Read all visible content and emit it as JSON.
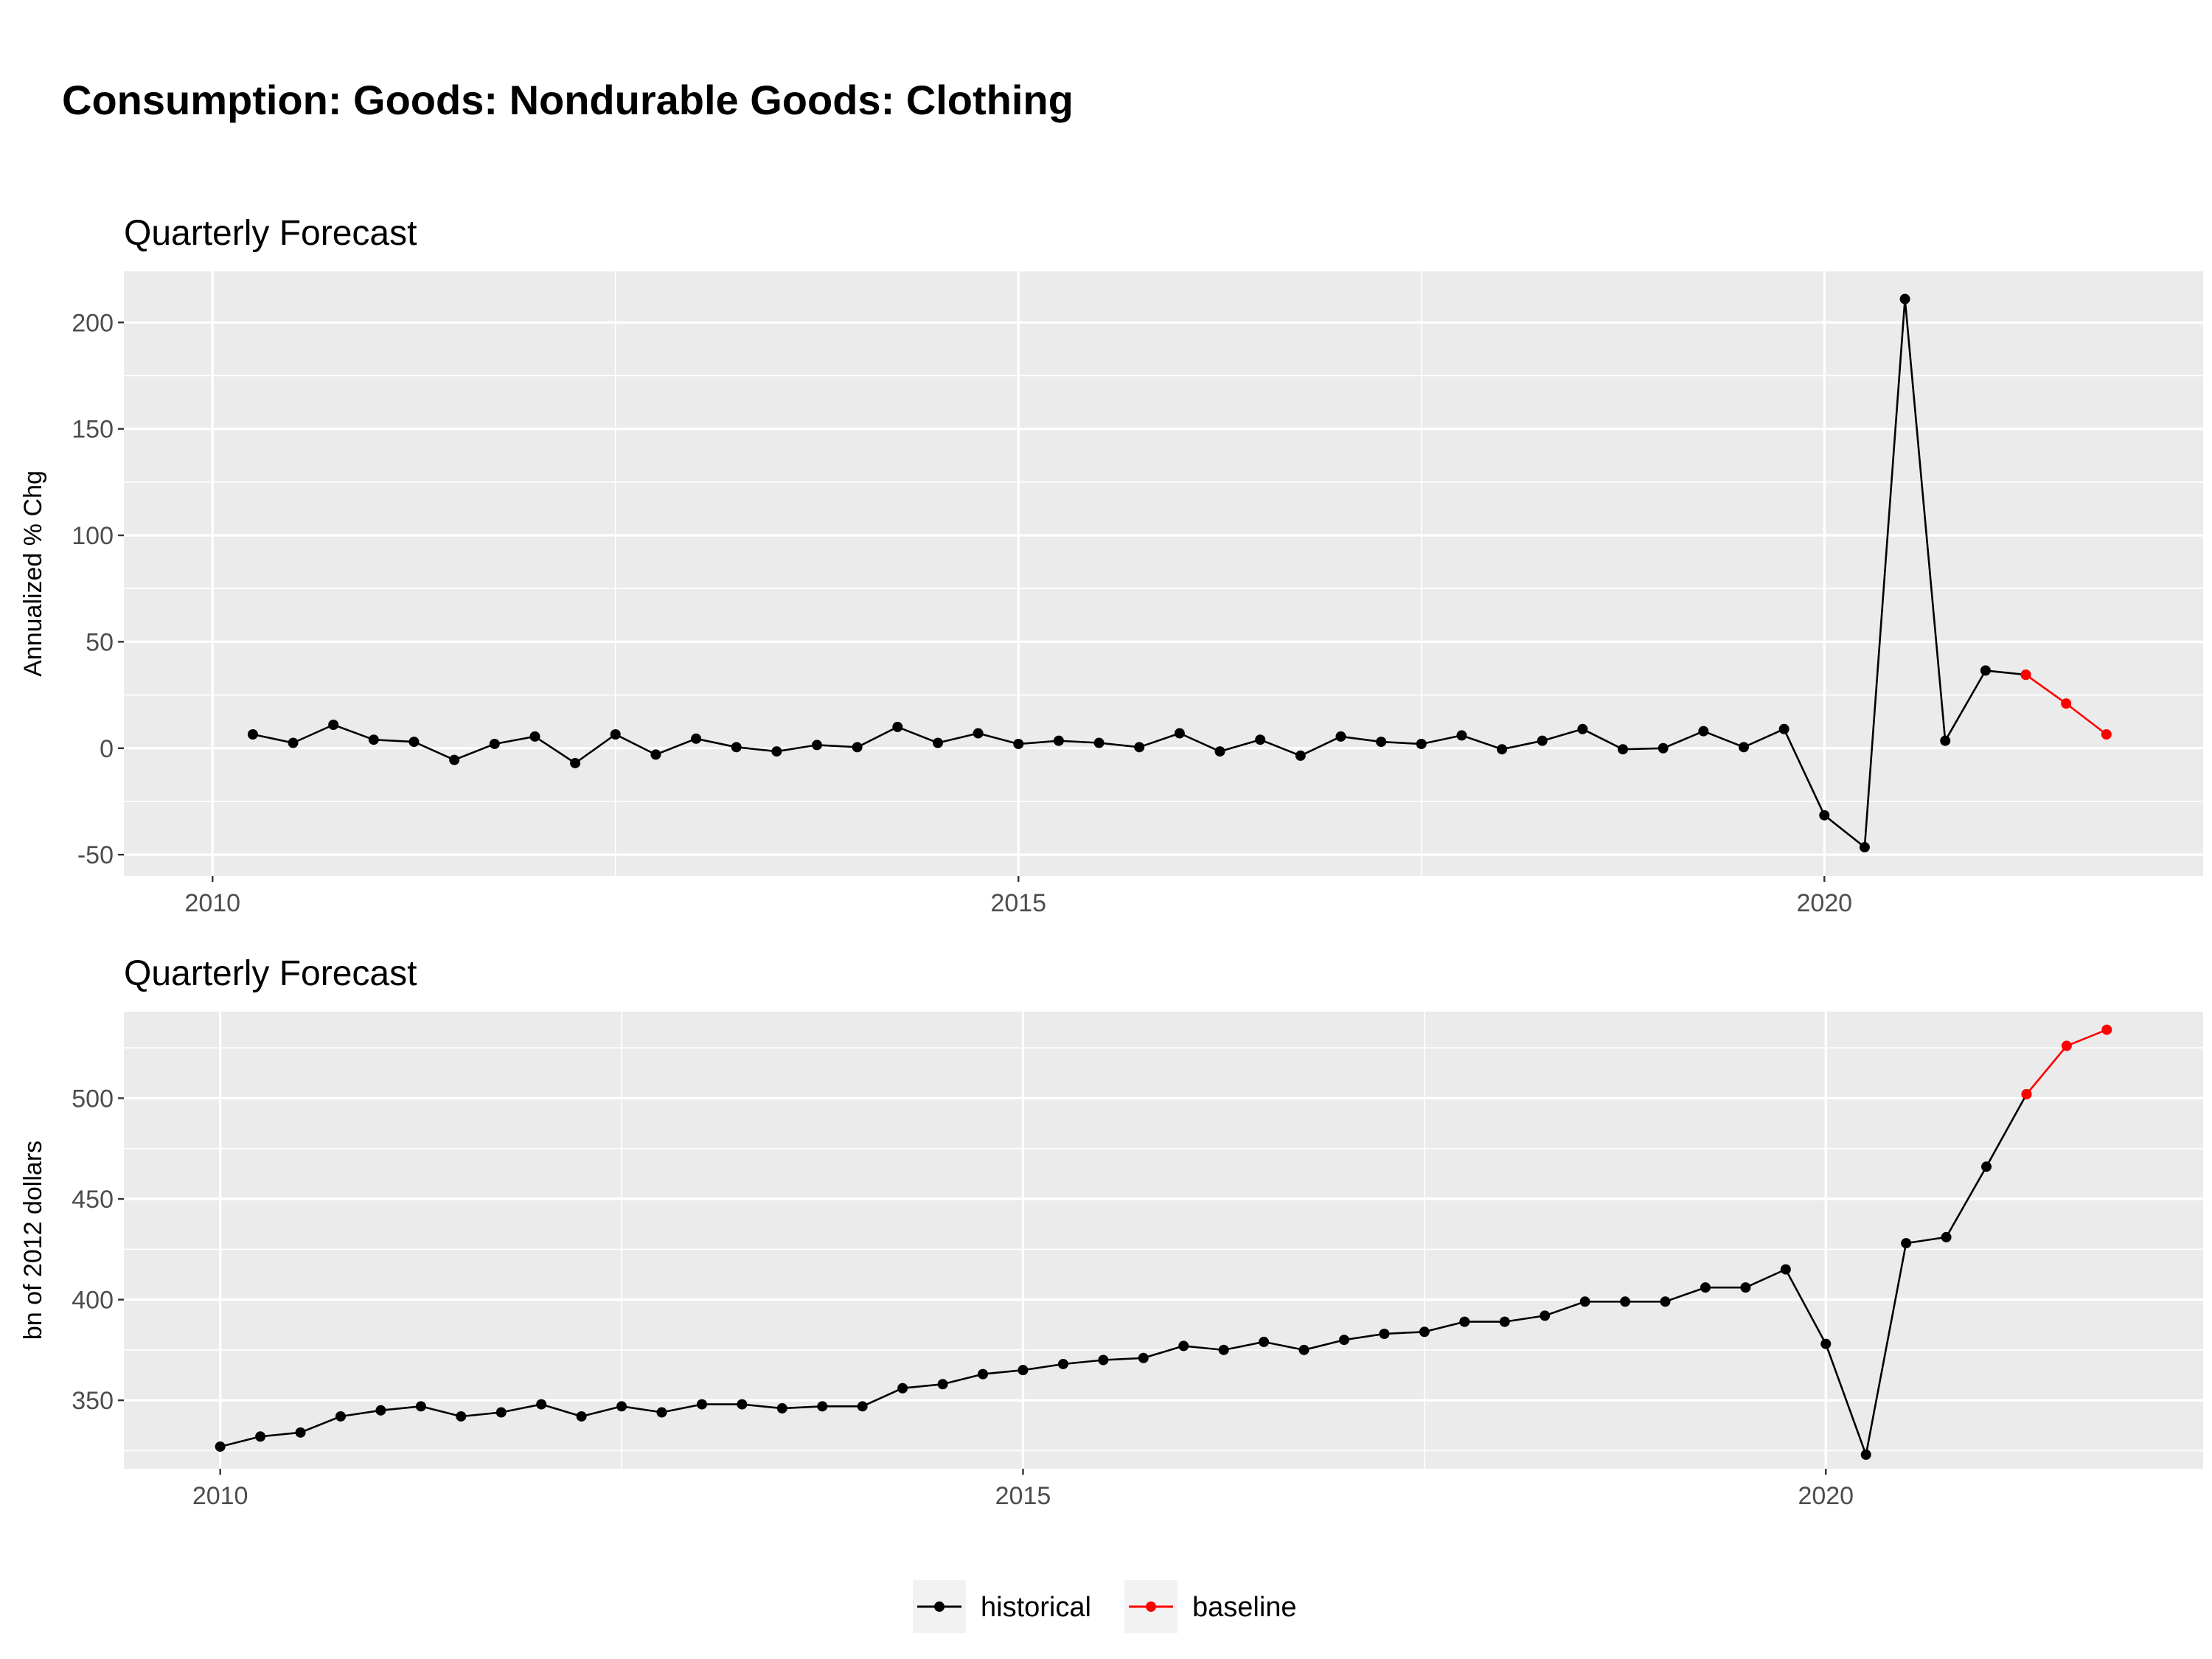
{
  "title": "Consumption: Goods: Nondurable Goods: Clothing",
  "legend": [
    {
      "name": "historical",
      "color": "#000000"
    },
    {
      "name": "baseline",
      "color": "#ff0000"
    }
  ],
  "chart_data": [
    {
      "type": "line",
      "subtitle": "Quarterly Forecast",
      "ylabel": "Annualized % Chg",
      "xlabel": "",
      "xlim": [
        2009.45,
        2022.35
      ],
      "ylim": [
        -60,
        224
      ],
      "xticks": [
        2010,
        2015,
        2020
      ],
      "xtick_labels": [
        "2010",
        "2015",
        "2020"
      ],
      "yticks": [
        -50,
        0,
        50,
        100,
        150,
        200
      ],
      "ytick_labels": [
        "-50",
        "0",
        "50",
        "100",
        "150",
        "200"
      ],
      "grid": true,
      "series": [
        {
          "name": "historical",
          "color": "#000000",
          "x": [
            2010.25,
            2010.5,
            2010.75,
            2011.0,
            2011.25,
            2011.5,
            2011.75,
            2012.0,
            2012.25,
            2012.5,
            2012.75,
            2013.0,
            2013.25,
            2013.5,
            2013.75,
            2014.0,
            2014.25,
            2014.5,
            2014.75,
            2015.0,
            2015.25,
            2015.5,
            2015.75,
            2016.0,
            2016.25,
            2016.5,
            2016.75,
            2017.0,
            2017.25,
            2017.5,
            2017.75,
            2018.0,
            2018.25,
            2018.5,
            2018.75,
            2019.0,
            2019.25,
            2019.5,
            2019.75,
            2020.0,
            2020.25,
            2020.5,
            2020.75,
            2021.0,
            2021.25
          ],
          "y": [
            6.5,
            2.5,
            11,
            4,
            3,
            -5.5,
            2,
            5.5,
            -7,
            6.5,
            -3,
            4.5,
            0.5,
            -1.5,
            1.5,
            0.5,
            10,
            2.5,
            7,
            2,
            3.5,
            2.5,
            0.5,
            7,
            -1.5,
            4,
            -3.5,
            5.5,
            3,
            2,
            6,
            -0.5,
            3.5,
            9,
            -0.5,
            0,
            8,
            0.5,
            9,
            -31.5,
            -46.5,
            211,
            3.5,
            36.5,
            34.5
          ]
        },
        {
          "name": "baseline",
          "color": "#ff0000",
          "x": [
            2021.25,
            2021.5,
            2021.75
          ],
          "y": [
            34.5,
            21,
            6.5
          ]
        }
      ]
    },
    {
      "type": "line",
      "subtitle": "Quarterly Forecast",
      "ylabel": "bn of 2012 dollars",
      "xlabel": "",
      "xlim": [
        2009.4,
        2022.35
      ],
      "ylim": [
        316,
        543
      ],
      "xticks": [
        2010,
        2015,
        2020
      ],
      "xtick_labels": [
        "2010",
        "2015",
        "2020"
      ],
      "yticks": [
        350,
        400,
        450,
        500
      ],
      "ytick_labels": [
        "350",
        "400",
        "450",
        "500"
      ],
      "grid": true,
      "series": [
        {
          "name": "historical",
          "color": "#000000",
          "x": [
            2010.0,
            2010.25,
            2010.5,
            2010.75,
            2011.0,
            2011.25,
            2011.5,
            2011.75,
            2012.0,
            2012.25,
            2012.5,
            2012.75,
            2013.0,
            2013.25,
            2013.5,
            2013.75,
            2014.0,
            2014.25,
            2014.5,
            2014.75,
            2015.0,
            2015.25,
            2015.5,
            2015.75,
            2016.0,
            2016.25,
            2016.5,
            2016.75,
            2017.0,
            2017.25,
            2017.5,
            2017.75,
            2018.0,
            2018.25,
            2018.5,
            2018.75,
            2019.0,
            2019.25,
            2019.5,
            2019.75,
            2020.0,
            2020.25,
            2020.5,
            2020.75,
            2021.0,
            2021.25
          ],
          "y": [
            327,
            332,
            334,
            342,
            345,
            347,
            342,
            344,
            348,
            342,
            347,
            344,
            348,
            348,
            346,
            347,
            347,
            356,
            358,
            363,
            365,
            368,
            370,
            371,
            377,
            375,
            379,
            375,
            380,
            383,
            384,
            389,
            389,
            392,
            399,
            399,
            399,
            406,
            406,
            415,
            378,
            323,
            428,
            431,
            466,
            502
          ]
        },
        {
          "name": "baseline",
          "color": "#ff0000",
          "x": [
            2021.25,
            2021.5,
            2021.75
          ],
          "y": [
            502,
            526,
            534
          ]
        }
      ]
    }
  ]
}
